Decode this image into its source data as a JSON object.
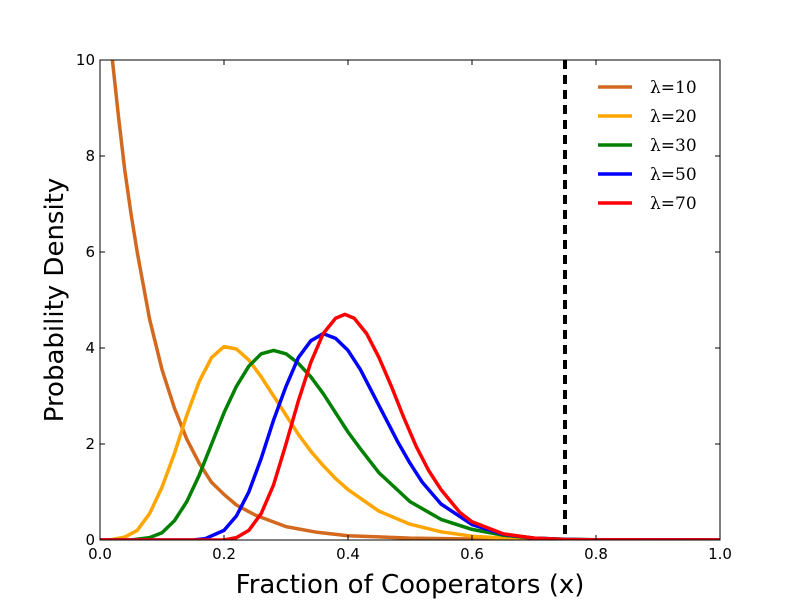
{
  "chart_data": {
    "type": "line",
    "title": "",
    "xlabel": "Fraction of Cooperators (x)",
    "ylabel": "Probability Density",
    "xlim": [
      0.0,
      1.0
    ],
    "ylim": [
      0,
      10
    ],
    "x_ticks": [
      "0.0",
      "0.2",
      "0.4",
      "0.6",
      "0.8",
      "1.0"
    ],
    "y_ticks": [
      "0",
      "2",
      "4",
      "6",
      "8",
      "10"
    ],
    "grid": false,
    "legend_position": "top-right",
    "reference_line": {
      "x": 0.75,
      "style": "dashed",
      "color": "#000000"
    },
    "series": [
      {
        "name": "λ=10",
        "color": "#d2691e",
        "points": [
          [
            0.02,
            10.0
          ],
          [
            0.03,
            8.8
          ],
          [
            0.04,
            7.7
          ],
          [
            0.05,
            6.8
          ],
          [
            0.06,
            6.0
          ],
          [
            0.08,
            4.6
          ],
          [
            0.1,
            3.55
          ],
          [
            0.12,
            2.75
          ],
          [
            0.14,
            2.1
          ],
          [
            0.16,
            1.6
          ],
          [
            0.18,
            1.2
          ],
          [
            0.2,
            0.95
          ],
          [
            0.22,
            0.73
          ],
          [
            0.25,
            0.52
          ],
          [
            0.3,
            0.28
          ],
          [
            0.35,
            0.16
          ],
          [
            0.4,
            0.09
          ],
          [
            0.5,
            0.04
          ],
          [
            0.6,
            0.02
          ],
          [
            0.7,
            0.01
          ],
          [
            0.8,
            0.005
          ],
          [
            1.0,
            0.0
          ]
        ]
      },
      {
        "name": "λ=20",
        "color": "#ffa500",
        "points": [
          [
            0.0,
            0.0
          ],
          [
            0.02,
            0.01
          ],
          [
            0.04,
            0.06
          ],
          [
            0.06,
            0.2
          ],
          [
            0.08,
            0.55
          ],
          [
            0.1,
            1.1
          ],
          [
            0.12,
            1.8
          ],
          [
            0.14,
            2.6
          ],
          [
            0.16,
            3.3
          ],
          [
            0.18,
            3.8
          ],
          [
            0.2,
            4.03
          ],
          [
            0.22,
            3.98
          ],
          [
            0.24,
            3.75
          ],
          [
            0.26,
            3.4
          ],
          [
            0.28,
            3.0
          ],
          [
            0.3,
            2.6
          ],
          [
            0.32,
            2.2
          ],
          [
            0.34,
            1.85
          ],
          [
            0.36,
            1.55
          ],
          [
            0.38,
            1.28
          ],
          [
            0.4,
            1.05
          ],
          [
            0.45,
            0.6
          ],
          [
            0.5,
            0.33
          ],
          [
            0.55,
            0.17
          ],
          [
            0.6,
            0.08
          ],
          [
            0.65,
            0.04
          ],
          [
            0.7,
            0.015
          ],
          [
            0.8,
            0.003
          ],
          [
            1.0,
            0.0
          ]
        ]
      },
      {
        "name": "λ=30",
        "color": "#008000",
        "points": [
          [
            0.0,
            0.0
          ],
          [
            0.05,
            0.0
          ],
          [
            0.08,
            0.05
          ],
          [
            0.1,
            0.15
          ],
          [
            0.12,
            0.4
          ],
          [
            0.14,
            0.8
          ],
          [
            0.16,
            1.35
          ],
          [
            0.18,
            2.0
          ],
          [
            0.2,
            2.65
          ],
          [
            0.22,
            3.2
          ],
          [
            0.24,
            3.62
          ],
          [
            0.26,
            3.88
          ],
          [
            0.28,
            3.95
          ],
          [
            0.3,
            3.88
          ],
          [
            0.32,
            3.68
          ],
          [
            0.34,
            3.4
          ],
          [
            0.36,
            3.05
          ],
          [
            0.38,
            2.65
          ],
          [
            0.4,
            2.25
          ],
          [
            0.42,
            1.9
          ],
          [
            0.45,
            1.4
          ],
          [
            0.5,
            0.8
          ],
          [
            0.55,
            0.43
          ],
          [
            0.6,
            0.22
          ],
          [
            0.65,
            0.1
          ],
          [
            0.7,
            0.04
          ],
          [
            0.75,
            0.015
          ],
          [
            0.8,
            0.005
          ],
          [
            1.0,
            0.0
          ]
        ]
      },
      {
        "name": "λ=50",
        "color": "#0000ff",
        "points": [
          [
            0.0,
            0.0
          ],
          [
            0.15,
            0.0
          ],
          [
            0.17,
            0.03
          ],
          [
            0.2,
            0.2
          ],
          [
            0.22,
            0.5
          ],
          [
            0.24,
            1.0
          ],
          [
            0.26,
            1.7
          ],
          [
            0.28,
            2.5
          ],
          [
            0.3,
            3.2
          ],
          [
            0.32,
            3.8
          ],
          [
            0.34,
            4.15
          ],
          [
            0.36,
            4.3
          ],
          [
            0.38,
            4.2
          ],
          [
            0.4,
            3.95
          ],
          [
            0.42,
            3.55
          ],
          [
            0.44,
            3.05
          ],
          [
            0.46,
            2.55
          ],
          [
            0.48,
            2.05
          ],
          [
            0.5,
            1.6
          ],
          [
            0.52,
            1.2
          ],
          [
            0.55,
            0.75
          ],
          [
            0.6,
            0.32
          ],
          [
            0.65,
            0.12
          ],
          [
            0.7,
            0.04
          ],
          [
            0.75,
            0.012
          ],
          [
            0.8,
            0.003
          ],
          [
            1.0,
            0.0
          ]
        ]
      },
      {
        "name": "λ=70",
        "color": "#ff0000",
        "points": [
          [
            0.0,
            0.0
          ],
          [
            0.2,
            0.0
          ],
          [
            0.22,
            0.05
          ],
          [
            0.24,
            0.2
          ],
          [
            0.26,
            0.55
          ],
          [
            0.28,
            1.15
          ],
          [
            0.3,
            2.0
          ],
          [
            0.32,
            2.9
          ],
          [
            0.34,
            3.7
          ],
          [
            0.36,
            4.3
          ],
          [
            0.38,
            4.62
          ],
          [
            0.395,
            4.7
          ],
          [
            0.41,
            4.62
          ],
          [
            0.43,
            4.3
          ],
          [
            0.45,
            3.8
          ],
          [
            0.47,
            3.2
          ],
          [
            0.49,
            2.55
          ],
          [
            0.51,
            1.95
          ],
          [
            0.53,
            1.45
          ],
          [
            0.55,
            1.05
          ],
          [
            0.58,
            0.58
          ],
          [
            0.6,
            0.38
          ],
          [
            0.65,
            0.13
          ],
          [
            0.7,
            0.04
          ],
          [
            0.75,
            0.01
          ],
          [
            0.8,
            0.002
          ],
          [
            1.0,
            0.0
          ]
        ]
      }
    ]
  }
}
